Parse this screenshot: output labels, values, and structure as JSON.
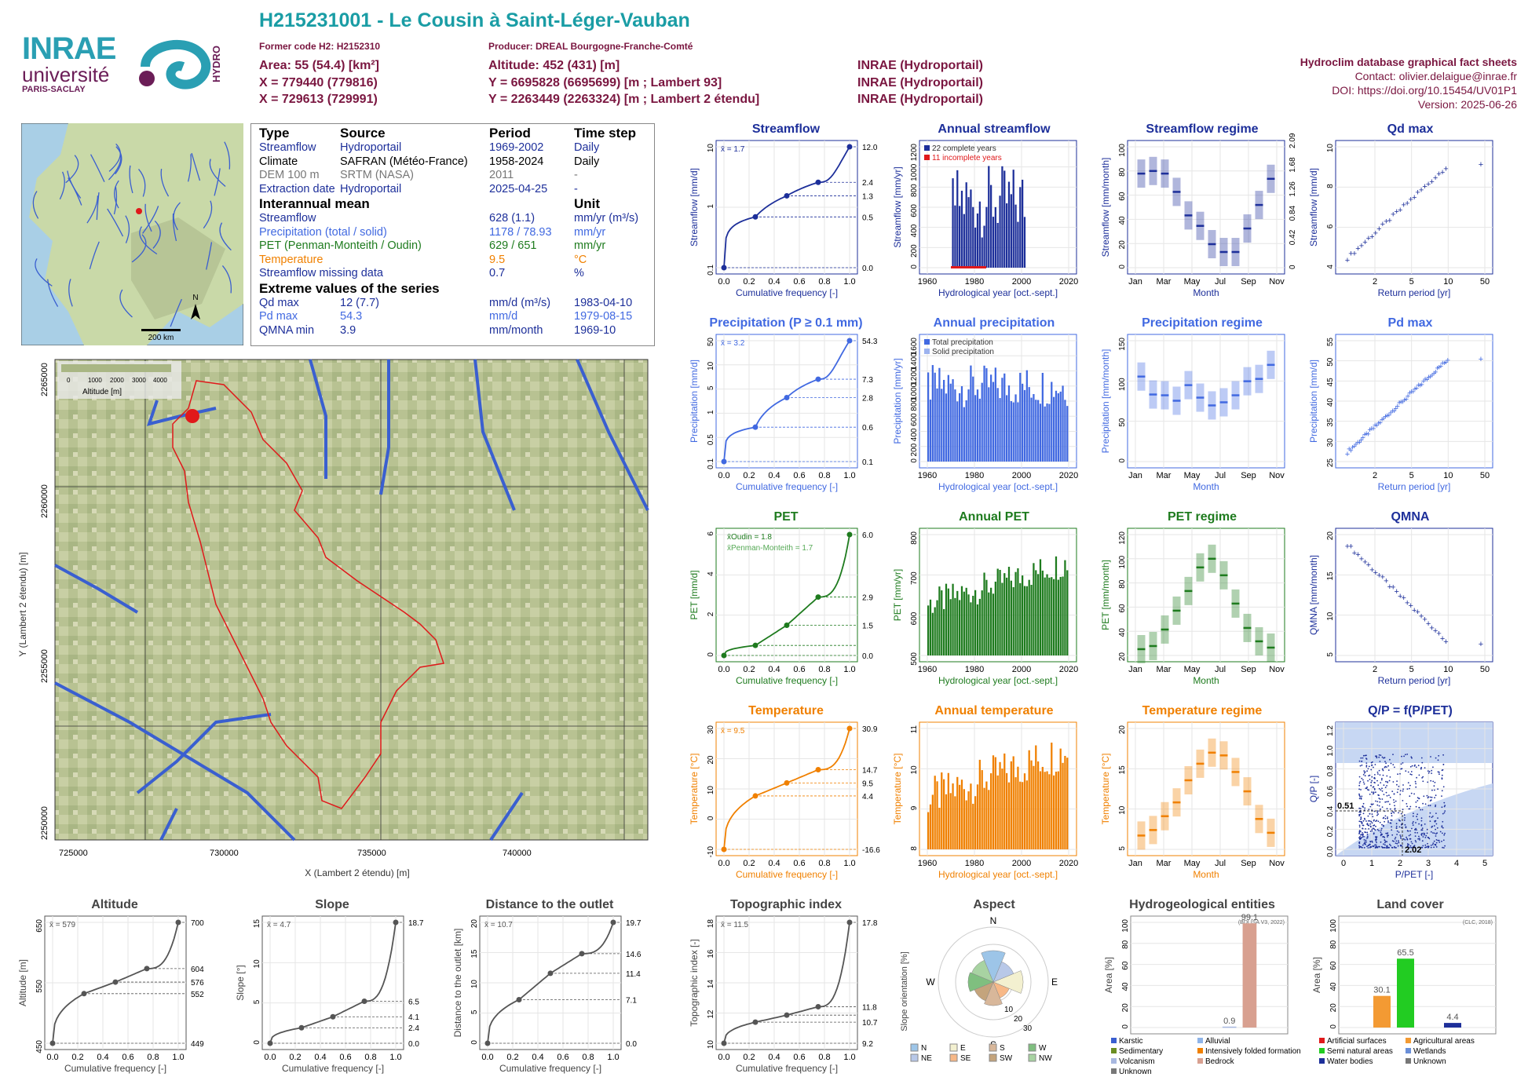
{
  "header": {
    "title": "H215231001 - Le Cousin à Saint-Léger-Vauban",
    "former_code": "Former code H2: H2152310",
    "producer": "Producer: DREAL Bourgogne-Franche-Comté",
    "area": "Area: 55 (54.4) [km²]",
    "altitude": "Altitude: 452 (431) [m]",
    "x93": "X = 779440 (779816)",
    "y93": "Y = 6695828 (6695699) [m ; Lambert 93]",
    "x2": "X = 729613 (729991)",
    "y2": "Y = 2263449 (2263324) [m ; Lambert 2 étendu]",
    "src1": "INRAE (Hydroportail)",
    "src2": "INRAE (Hydroportail)",
    "src3": "INRAE (Hydroportail)",
    "db_title": "Hydroclim database graphical fact sheets",
    "contact": "Contact: olivier.delaigue@inrae.fr",
    "doi": "DOI: https://doi.org/10.15454/UV01P1",
    "version": "Version: 2025-06-26"
  },
  "logos": {
    "inrae": "INRAE",
    "universite": "université",
    "paris_saclay": "PARIS-SACLAY",
    "hydro": "HYDRO"
  },
  "info_table": {
    "headers": [
      "Type",
      "Source",
      "Period",
      "Time step"
    ],
    "rows": [
      [
        "Streamflow",
        "Hydroportail",
        "1969-2002",
        "Daily"
      ],
      [
        "Climate",
        "SAFRAN (Météo-France)",
        "1958-2024",
        "Daily"
      ],
      [
        "DEM 100 m",
        "SRTM (NASA)",
        "2011",
        "-"
      ],
      [
        "Extraction date",
        "Hydroportail",
        "2025-04-25",
        "-"
      ]
    ],
    "interannual_title": "Interannual mean",
    "unit_title": "Unit",
    "interannual": [
      [
        "Streamflow",
        "628 (1.1)",
        "mm/yr (m³/s)"
      ],
      [
        "Precipitation (total / solid)",
        "1178 / 78.93",
        "mm/yr"
      ],
      [
        "PET (Penman-Monteith / Oudin)",
        "629 / 651",
        "mm/yr"
      ],
      [
        "Temperature",
        "9.5",
        "°C"
      ],
      [
        "Streamflow missing data",
        "0.7",
        "%"
      ]
    ],
    "extreme_title": "Extreme values of the series",
    "extremes": [
      [
        "Qd max",
        "12 (7.7)",
        "mm/d (m³/s)",
        "1983-04-10"
      ],
      [
        "Pd max",
        "54.3",
        "mm/d",
        "1979-08-15"
      ],
      [
        "QMNA min",
        "3.9",
        "mm/month",
        "1969-10"
      ]
    ]
  },
  "map_small": {
    "scale": "200 km",
    "north": "N"
  },
  "map_large": {
    "xlabel": "X (Lambert 2 étendu) [m]",
    "ylabel": "Y (Lambert 2 étendu) [m]",
    "xticks": [
      "725000",
      "730000",
      "735000",
      "740000"
    ],
    "yticks": [
      "2250000",
      "2255000",
      "2260000",
      "2265000"
    ],
    "legend_title": "Altitude [m]",
    "legend_ticks": [
      "0",
      "1000",
      "2000",
      "3000",
      "4000"
    ]
  },
  "colors": {
    "streamflow": "#1d2f9a",
    "precip": "#4169e1",
    "pet": "#1e7b1e",
    "temp": "#f08000",
    "grey": "#555555",
    "red": "#e0191b",
    "title_teal": "#1a9da5",
    "meta": "#7a1640"
  },
  "chart_data": [
    {
      "id": "streamflow_cdf",
      "type": "line",
      "title": "Streamflow",
      "ylabel": "Streamflow [mm/d]",
      "xlabel": "Cumulative frequency [-]",
      "mean": "x̄ = 1.7",
      "y_scale": "log",
      "xticks": [
        "0.0",
        "0.2",
        "0.4",
        "0.6",
        "0.8",
        "1.0"
      ],
      "yticks": [
        "0.1",
        "1",
        "10"
      ],
      "right_labels": [
        "12.0",
        "2.4",
        "1.3",
        "0.5",
        "0.0"
      ],
      "x": [
        0,
        0.25,
        0.5,
        0.75,
        1
      ],
      "y": [
        0.0,
        0.5,
        1.3,
        2.4,
        12.0
      ]
    },
    {
      "id": "annual_streamflow",
      "type": "bar",
      "title": "Annual streamflow",
      "ylabel": "Streamflow [mm/yr]",
      "xlabel": "Hydrological year [oct.-sept.]",
      "legend": [
        "22 complete years",
        "11 incomplete years"
      ],
      "xticks": [
        "1960",
        "1980",
        "2000",
        "2020"
      ],
      "yticks": [
        "0",
        "200",
        "400",
        "600",
        "800",
        "1000",
        "1200"
      ]
    },
    {
      "id": "streamflow_regime",
      "type": "bar",
      "title": "Streamflow regime",
      "ylabel": "Streamflow [mm/month]",
      "ylabel_right": "Streamflow [m³/s]",
      "xlabel": "Month",
      "xticks": [
        "Jan",
        "Mar",
        "May",
        "Jul",
        "Sep",
        "Nov"
      ],
      "yticks": [
        "0",
        "20",
        "40",
        "60",
        "80",
        "100"
      ],
      "right_ticks": [
        "0",
        "0.42",
        "0.84",
        "1.26",
        "1.68",
        "2.09"
      ],
      "categories": [
        "Jan",
        "Feb",
        "Mar",
        "Apr",
        "May",
        "Jun",
        "Jul",
        "Aug",
        "Sep",
        "Oct",
        "Nov",
        "Dec"
      ],
      "values": [
        72,
        74,
        72,
        58,
        40,
        32,
        18,
        12,
        12,
        30,
        48,
        68
      ]
    },
    {
      "id": "qd_max",
      "type": "scatter",
      "title": "Qd max",
      "ylabel": "Streamflow [mm/d]",
      "ylabel_right": "Streamflow [m³/s]",
      "xlabel": "Return period [yr]",
      "xticks": [
        "2",
        "5",
        "10",
        "50"
      ],
      "yticks": [
        "4",
        "6",
        "8",
        "10"
      ]
    },
    {
      "id": "precip_cdf",
      "type": "line",
      "title": "Precipitation (P ≥ 0.1 mm)",
      "ylabel": "Precipitation [mm/d]",
      "xlabel": "Cumulative frequency [-]",
      "mean": "x̄ = 3.2",
      "y_scale": "log",
      "xticks": [
        "0.0",
        "0.2",
        "0.4",
        "0.6",
        "0.8",
        "1.0"
      ],
      "yticks": [
        "0.1",
        "0.5",
        "1",
        "5",
        "10",
        "50"
      ],
      "right_labels": [
        "54.3",
        "7.3",
        "2.8",
        "0.6",
        "0.1"
      ],
      "x": [
        0,
        0.25,
        0.5,
        0.75,
        1
      ],
      "y": [
        0.1,
        0.6,
        2.8,
        7.3,
        54.3
      ]
    },
    {
      "id": "annual_precip",
      "type": "bar",
      "title": "Annual precipitation",
      "ylabel": "Precipitation [mm/yr]",
      "xlabel": "Hydrological year [oct.-sept.]",
      "legend": [
        "Total precipitation",
        "Solid precipitation"
      ],
      "xticks": [
        "1960",
        "1980",
        "2000",
        "2020"
      ],
      "yticks": [
        "0",
        "200",
        "400",
        "600",
        "800",
        "1000",
        "1200",
        "1400",
        "1600"
      ]
    },
    {
      "id": "precip_regime",
      "type": "bar",
      "title": "Precipitation regime",
      "ylabel": "Precipitation [mm/month]",
      "xlabel": "Month",
      "xticks": [
        "Jan",
        "Mar",
        "May",
        "Jul",
        "Sep",
        "Nov"
      ],
      "yticks": [
        "0",
        "50",
        "100",
        "150"
      ],
      "categories": [
        "Jan",
        "Feb",
        "Mar",
        "Apr",
        "May",
        "Jun",
        "Jul",
        "Aug",
        "Sep",
        "Oct",
        "Nov",
        "Dec"
      ],
      "values": [
        109,
        86,
        85,
        78,
        98,
        82,
        72,
        76,
        85,
        103,
        106,
        124
      ]
    },
    {
      "id": "pd_max",
      "type": "scatter",
      "title": "Pd max",
      "ylabel": "Precipitation [mm/d]",
      "xlabel": "Return period [yr]",
      "xticks": [
        "2",
        "5",
        "10",
        "50"
      ],
      "yticks": [
        "25",
        "30",
        "35",
        "40",
        "45",
        "50",
        "55"
      ]
    },
    {
      "id": "pet_cdf",
      "type": "line",
      "title": "PET",
      "ylabel": "PET [mm/d]",
      "xlabel": "Cumulative frequency [-]",
      "mean_oudin": "x̄Oudin = 1.8",
      "mean_pm": "x̄Penman-Monteith = 1.7",
      "xticks": [
        "0.0",
        "0.2",
        "0.4",
        "0.6",
        "0.8",
        "1.0"
      ],
      "yticks": [
        "0",
        "2",
        "4",
        "6"
      ],
      "right_labels": [
        "6.0",
        "2.9",
        "1.5",
        "0.0"
      ],
      "x": [
        0,
        0.25,
        0.5,
        0.75,
        1
      ],
      "y": [
        0.0,
        0.5,
        1.5,
        2.9,
        6.0
      ]
    },
    {
      "id": "annual_pet",
      "type": "bar",
      "title": "Annual PET",
      "ylabel": "PET [mm/yr]",
      "xlabel": "Hydrological year [oct.-sept.]",
      "xticks": [
        "1960",
        "1980",
        "2000",
        "2020"
      ],
      "yticks": [
        "500",
        "600",
        "700",
        "800"
      ]
    },
    {
      "id": "pet_regime",
      "type": "bar",
      "title": "PET regime",
      "ylabel": "PET [mm/month]",
      "xlabel": "Month",
      "xticks": [
        "Jan",
        "Mar",
        "May",
        "Jul",
        "Sep",
        "Nov"
      ],
      "yticks": [
        "20",
        "40",
        "60",
        "80",
        "100",
        "120"
      ],
      "categories": [
        "Jan",
        "Feb",
        "Mar",
        "Apr",
        "May",
        "Jun",
        "Jul",
        "Aug",
        "Sep",
        "Oct",
        "Nov",
        "Dec"
      ],
      "values": [
        8,
        12,
        33,
        57,
        82,
        112,
        123,
        102,
        66,
        35,
        18,
        10
      ]
    },
    {
      "id": "qmna",
      "type": "scatter",
      "title": "QMNA",
      "ylabel": "QMNA [mm/month]",
      "xlabel": "Return period [yr]",
      "xticks": [
        "2",
        "5",
        "10",
        "50"
      ],
      "yticks": [
        "5",
        "10",
        "15",
        "20"
      ]
    },
    {
      "id": "temp_cdf",
      "type": "line",
      "title": "Temperature",
      "ylabel": "Temperature [°C]",
      "xlabel": "Cumulative frequency [-]",
      "mean": "x̄ = 9.5",
      "xticks": [
        "0.0",
        "0.2",
        "0.4",
        "0.6",
        "0.8",
        "1.0"
      ],
      "yticks": [
        "-10",
        "0",
        "10",
        "20",
        "30"
      ],
      "right_labels": [
        "30.9",
        "14.7",
        "9.5",
        "4.4",
        "-16.6"
      ],
      "x": [
        0,
        0.25,
        0.5,
        0.75,
        1
      ],
      "y": [
        -16.6,
        4.4,
        9.5,
        14.7,
        30.9
      ]
    },
    {
      "id": "annual_temp",
      "type": "bar",
      "title": "Annual temperature",
      "ylabel": "Temperature [°C]",
      "xlabel": "Hydrological year [oct.-sept.]",
      "xticks": [
        "1960",
        "1980",
        "2000",
        "2020"
      ],
      "yticks": [
        "8",
        "9",
        "10",
        "11"
      ]
    },
    {
      "id": "temp_regime",
      "type": "bar",
      "title": "Temperature regime",
      "ylabel": "Temperature [°C]",
      "xlabel": "Month",
      "xticks": [
        "Jan",
        "Mar",
        "May",
        "Jul",
        "Sep",
        "Nov"
      ],
      "yticks": [
        "5",
        "10",
        "15",
        "20"
      ],
      "categories": [
        "Jan",
        "Feb",
        "Mar",
        "Apr",
        "May",
        "Jun",
        "Jul",
        "Aug",
        "Sep",
        "Oct",
        "Nov",
        "Dec"
      ],
      "values": [
        2.5,
        3.5,
        6,
        8.5,
        12.5,
        15.5,
        17.5,
        17,
        14,
        10.5,
        5.5,
        3
      ]
    },
    {
      "id": "qp_ppet",
      "type": "scatter",
      "title": "Q/P = f(P/PET)",
      "ylabel": "Q/P [-]",
      "xlabel": "P/PET [-]",
      "xticks": [
        "0",
        "1",
        "2",
        "3",
        "4",
        "5"
      ],
      "yticks": [
        "0.0",
        "0.2",
        "0.4",
        "0.6",
        "0.8",
        "1.0",
        "1.2"
      ],
      "annot_y": "0.51",
      "annot_x": "2.02"
    },
    {
      "id": "altitude_cdf",
      "type": "line",
      "title": "Altitude",
      "ylabel": "Altitude [m]",
      "xlabel": "Cumulative frequency [-]",
      "mean": "x̄ = 579",
      "xticks": [
        "0.0",
        "0.2",
        "0.4",
        "0.6",
        "0.8",
        "1.0"
      ],
      "yticks": [
        "450",
        "550",
        "650"
      ],
      "right_labels": [
        "700",
        "604",
        "576",
        "552",
        "449"
      ],
      "x": [
        0,
        0.25,
        0.5,
        0.75,
        1
      ],
      "y": [
        449,
        552,
        576,
        604,
        700
      ]
    },
    {
      "id": "slope_cdf",
      "type": "line",
      "title": "Slope",
      "ylabel": "Slope [°]",
      "xlabel": "Cumulative frequency [-]",
      "mean": "x̄ = 4.7",
      "xticks": [
        "0.0",
        "0.2",
        "0.4",
        "0.6",
        "0.8",
        "1.0"
      ],
      "yticks": [
        "0",
        "5",
        "10",
        "15"
      ],
      "right_labels": [
        "18.7",
        "6.5",
        "4.1",
        "2.4",
        "0.0"
      ],
      "x": [
        0,
        0.25,
        0.5,
        0.75,
        1
      ],
      "y": [
        0.0,
        2.4,
        4.1,
        6.5,
        18.7
      ]
    },
    {
      "id": "distance_cdf",
      "type": "line",
      "title": "Distance to the outlet",
      "ylabel": "Distance to the outlet [km]",
      "xlabel": "Cumulative frequency [-]",
      "mean": "x̄ = 10.7",
      "xticks": [
        "0.0",
        "0.2",
        "0.4",
        "0.6",
        "0.8",
        "1.0"
      ],
      "yticks": [
        "0",
        "5",
        "10",
        "15",
        "20"
      ],
      "right_labels": [
        "19.7",
        "14.6",
        "11.4",
        "7.1",
        "0.0"
      ],
      "x": [
        0,
        0.25,
        0.5,
        0.75,
        1
      ],
      "y": [
        0.0,
        7.1,
        11.4,
        14.6,
        19.7
      ]
    },
    {
      "id": "topo_cdf",
      "type": "line",
      "title": "Topographic index",
      "ylabel": "Topographic index [-]",
      "xlabel": "Cumulative frequency [-]",
      "mean": "x̄ = 11.5",
      "xticks": [
        "0.0",
        "0.2",
        "0.4",
        "0.6",
        "0.8",
        "1.0"
      ],
      "yticks": [
        "10",
        "12",
        "14",
        "16",
        "18"
      ],
      "right_labels": [
        "17.8",
        "11.8",
        "10.7",
        "9.2"
      ],
      "x": [
        0,
        0.25,
        0.5,
        0.75,
        1
      ],
      "y": [
        9.2,
        10.7,
        11.2,
        11.8,
        17.8
      ]
    },
    {
      "id": "aspect",
      "type": "pie",
      "title": "Aspect",
      "ylabel": "Slope orientation [%]",
      "compass": [
        "N",
        "E",
        "S",
        "W"
      ],
      "rings": [
        "10",
        "20",
        "30"
      ],
      "legend": [
        "N",
        "E",
        "S",
        "W",
        "NE",
        "SE",
        "SW",
        "NW"
      ]
    },
    {
      "id": "hydrogeology",
      "type": "bar",
      "title": "Hydrogeological entities",
      "ylabel": "Area [%]",
      "source": "(BDLISA V3, 2022)",
      "yticks": [
        "0",
        "20",
        "40",
        "60",
        "80",
        "100"
      ],
      "categories": [
        "Karstic",
        "Alluvial",
        "Sedimentary",
        "Intensively folded formation",
        "Volcanism",
        "Bedrock",
        "Unknown"
      ],
      "values": [
        0,
        0,
        0,
        0,
        0.9,
        99.1,
        0
      ],
      "labels": [
        "0.9",
        "99.1"
      ]
    },
    {
      "id": "land_cover",
      "type": "bar",
      "title": "Land cover",
      "ylabel": "Area [%]",
      "source": "(CLC, 2018)",
      "yticks": [
        "0",
        "20",
        "40",
        "60",
        "80",
        "100"
      ],
      "categories": [
        "Artificial surfaces",
        "Agricultural areas",
        "Semi natural areas",
        "Wetlands",
        "Water bodies",
        "Unknown"
      ],
      "values": [
        0,
        30.1,
        65.5,
        0,
        4.4,
        0
      ],
      "labels": [
        "30.1",
        "65.5",
        "4.4"
      ]
    }
  ]
}
